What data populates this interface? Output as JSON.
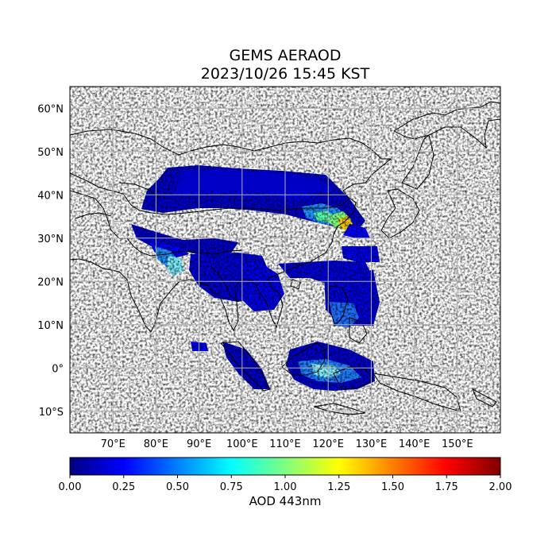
{
  "title": {
    "line1": "GEMS AERAOD",
    "line2": "2023/10/26 15:45 KST"
  },
  "map": {
    "projection": "PlateCarree",
    "lon_range": [
      60,
      160
    ],
    "lat_range": [
      -15,
      65
    ],
    "lat_ticks": [
      {
        "value": 60,
        "label": "60°N"
      },
      {
        "value": 50,
        "label": "50°N"
      },
      {
        "value": 40,
        "label": "40°N"
      },
      {
        "value": 30,
        "label": "30°N"
      },
      {
        "value": 20,
        "label": "20°N"
      },
      {
        "value": 10,
        "label": "10°N"
      },
      {
        "value": 0,
        "label": "0°"
      },
      {
        "value": -10,
        "label": "10°S"
      }
    ],
    "lon_ticks": [
      {
        "value": 70,
        "label": "70°E"
      },
      {
        "value": 80,
        "label": "80°E"
      },
      {
        "value": 90,
        "label": "90°E"
      },
      {
        "value": 100,
        "label": "100°E"
      },
      {
        "value": 110,
        "label": "110°E"
      },
      {
        "value": 120,
        "label": "120°E"
      },
      {
        "value": 130,
        "label": "130°E"
      },
      {
        "value": 140,
        "label": "140°E"
      },
      {
        "value": 150,
        "label": "150°E"
      }
    ],
    "gridlines": true
  },
  "colorbar": {
    "colormap": "jet",
    "min": 0.0,
    "max": 2.0,
    "ticks": [
      "0.00",
      "0.25",
      "0.50",
      "0.75",
      "1.00",
      "1.25",
      "1.50",
      "1.75",
      "2.00"
    ],
    "label": "AOD 443nm",
    "colors": [
      "#00007f",
      "#0000ff",
      "#007fff",
      "#00ffff",
      "#7fff7f",
      "#ffff00",
      "#ff7f00",
      "#ff0000",
      "#7f0000"
    ]
  }
}
